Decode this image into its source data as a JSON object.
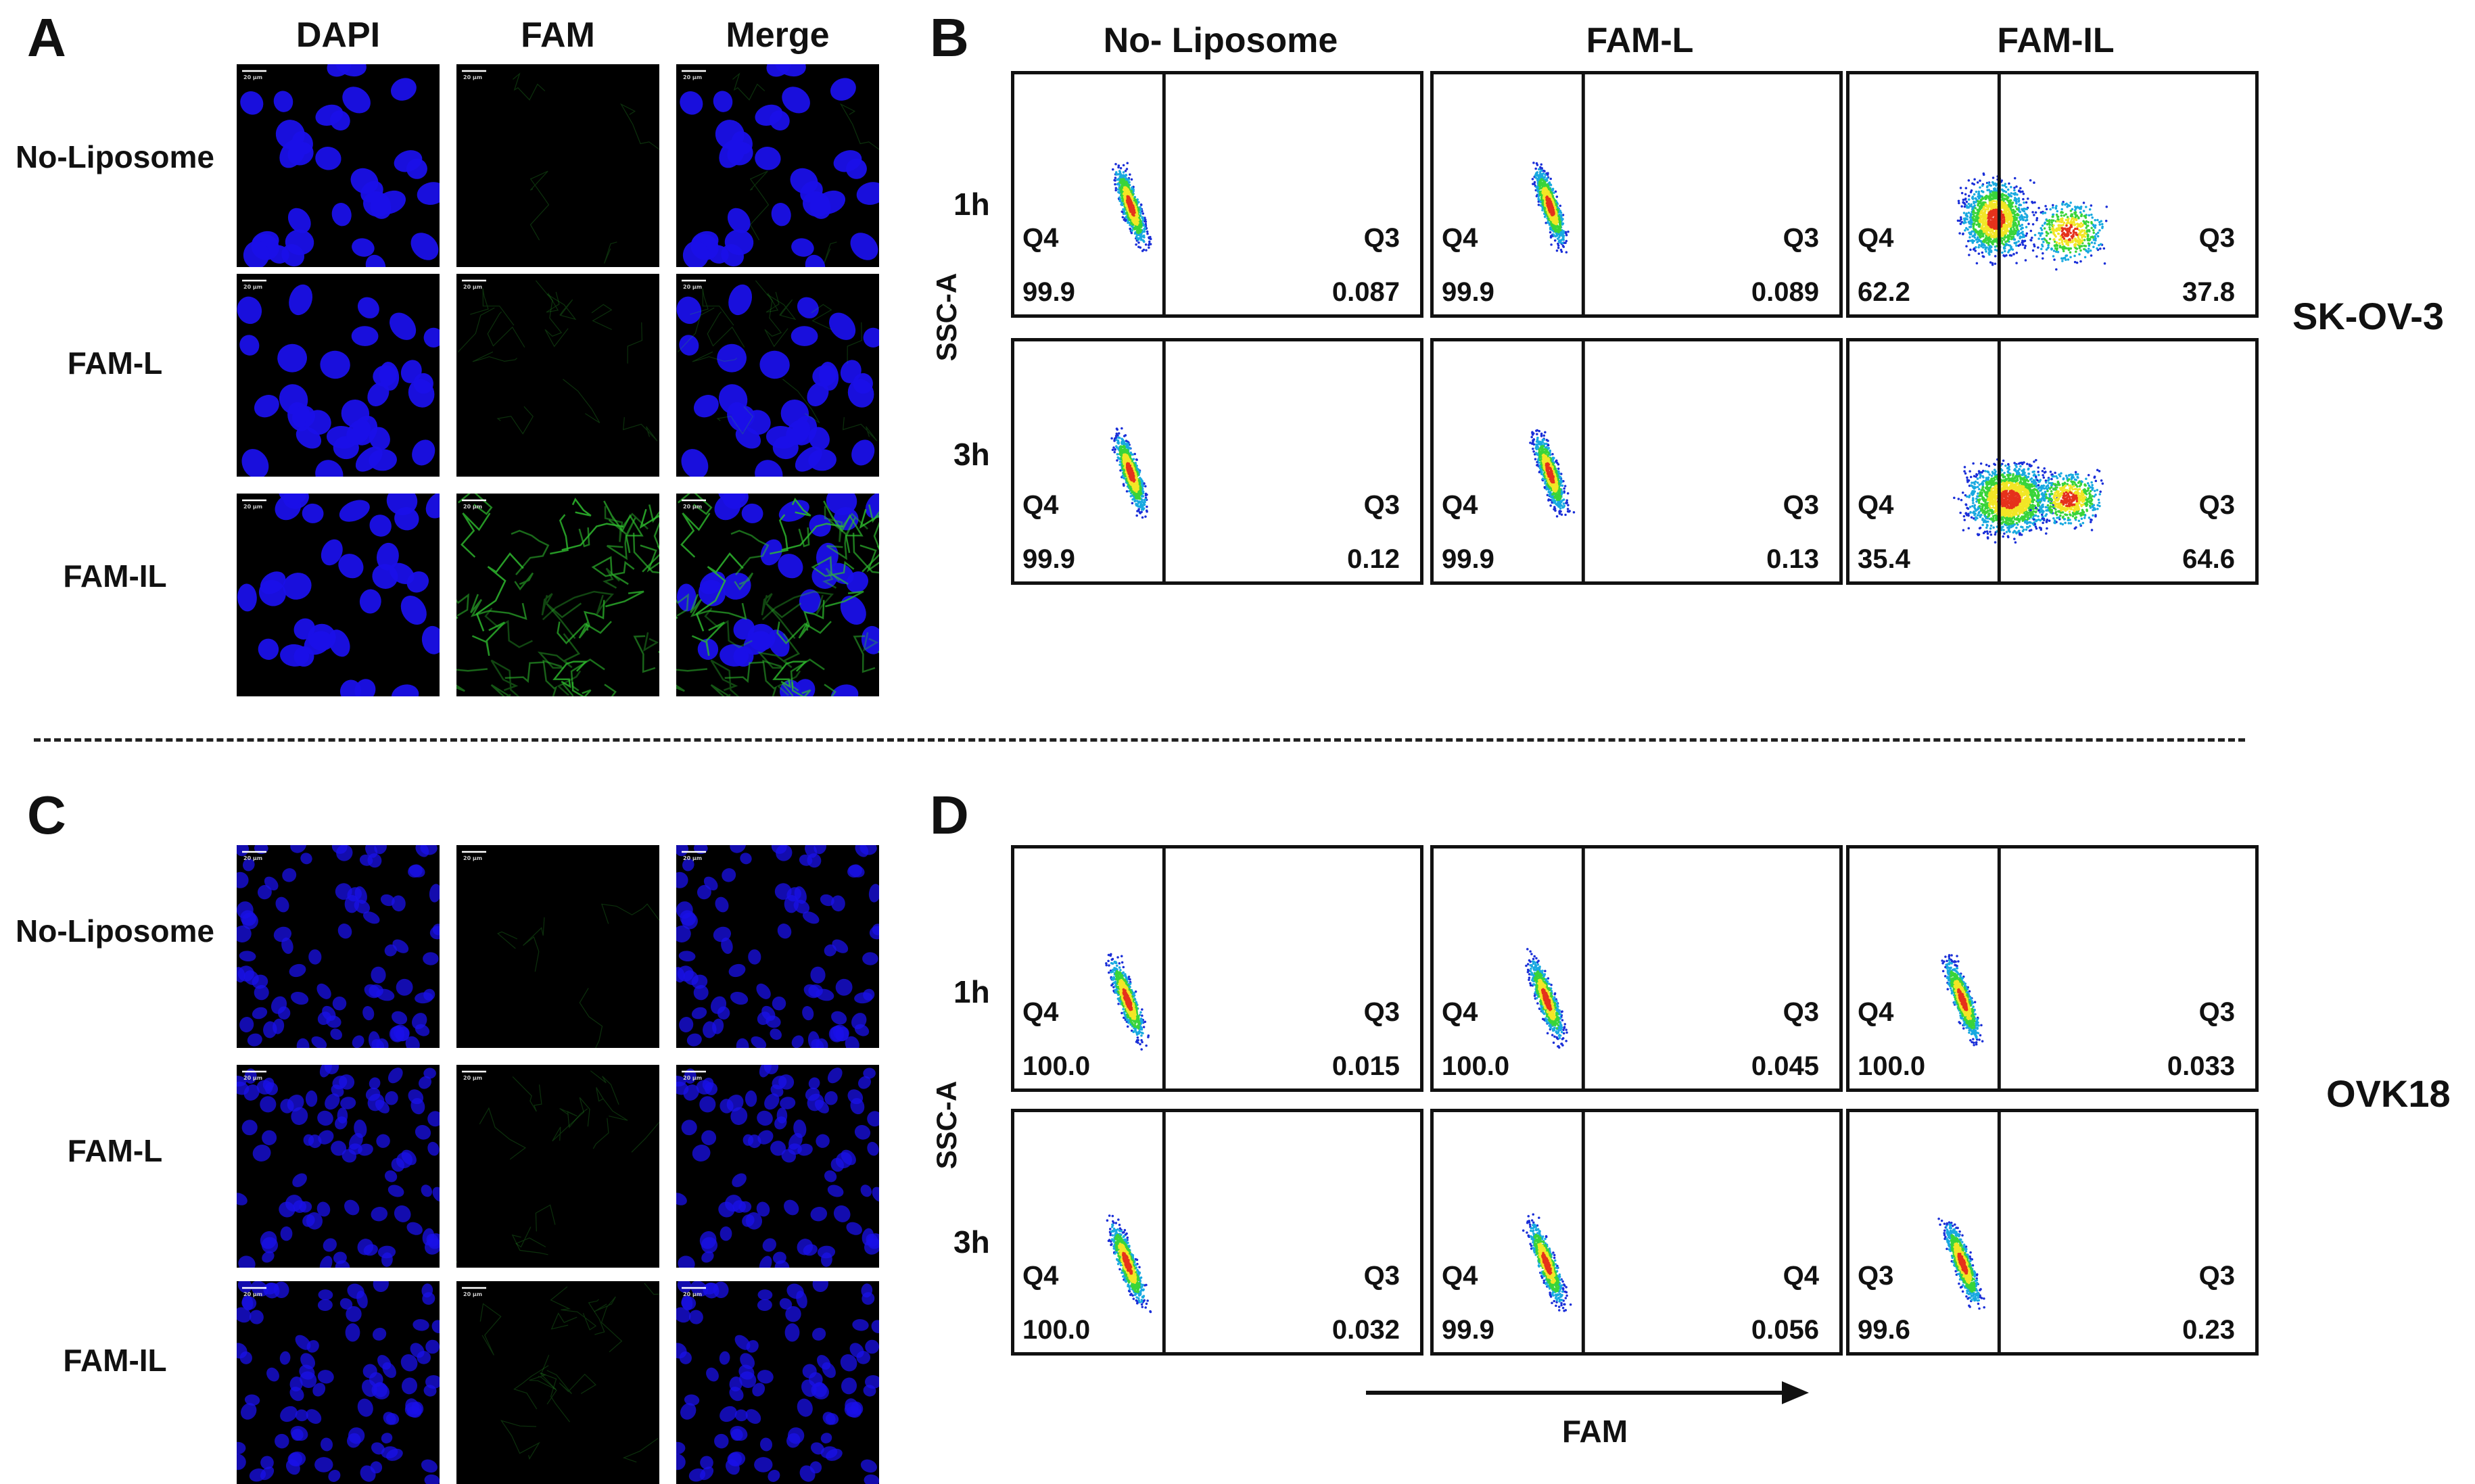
{
  "panels": {
    "a": "A",
    "b": "B",
    "c": "C",
    "d": "D"
  },
  "microscopy": {
    "col_headers": [
      "DAPI",
      "FAM",
      "Merge"
    ],
    "row_headers": [
      "No-Liposome",
      "FAM-L",
      "FAM-IL"
    ],
    "scale_bar_text": "20 μm",
    "colors": {
      "nuclei": "#1a10e8",
      "fam": "#2fbf2f",
      "background": "#000000"
    }
  },
  "flow": {
    "col_headers": [
      "No- Liposome",
      "FAM-L",
      "FAM-IL"
    ],
    "time_labels": [
      "1h",
      "3h"
    ],
    "y_axis": "SSC-A",
    "x_axis": "FAM",
    "cell_lines": [
      "SK-OV-3",
      "OVK18"
    ],
    "sk": [
      [
        {
          "ll": "Q4",
          "lv": "99.9",
          "rl": "Q3",
          "rv": "0.087"
        },
        {
          "ll": "Q4",
          "lv": "99.9",
          "rl": "Q3",
          "rv": "0.089"
        },
        {
          "ll": "Q4",
          "lv": "62.2",
          "rl": "Q3",
          "rv": "37.8"
        }
      ],
      [
        {
          "ll": "Q4",
          "lv": "99.9",
          "rl": "Q3",
          "rv": "0.12"
        },
        {
          "ll": "Q4",
          "lv": "99.9",
          "rl": "Q3",
          "rv": "0.13"
        },
        {
          "ll": "Q4",
          "lv": "35.4",
          "rl": "Q3",
          "rv": "64.6"
        }
      ]
    ],
    "ovk": [
      [
        {
          "ll": "Q4",
          "lv": "100.0",
          "rl": "Q3",
          "rv": "0.015"
        },
        {
          "ll": "Q4",
          "lv": "100.0",
          "rl": "Q3",
          "rv": "0.045"
        },
        {
          "ll": "Q4",
          "lv": "100.0",
          "rl": "Q3",
          "rv": "0.033"
        }
      ],
      [
        {
          "ll": "Q4",
          "lv": "100.0",
          "rl": "Q3",
          "rv": "0.032"
        },
        {
          "ll": "Q4",
          "lv": "99.9",
          "rl": "Q4",
          "rv": "0.056"
        },
        {
          "ll": "Q3",
          "lv": "99.6",
          "rl": "Q3",
          "rv": "0.23"
        }
      ]
    ]
  }
}
